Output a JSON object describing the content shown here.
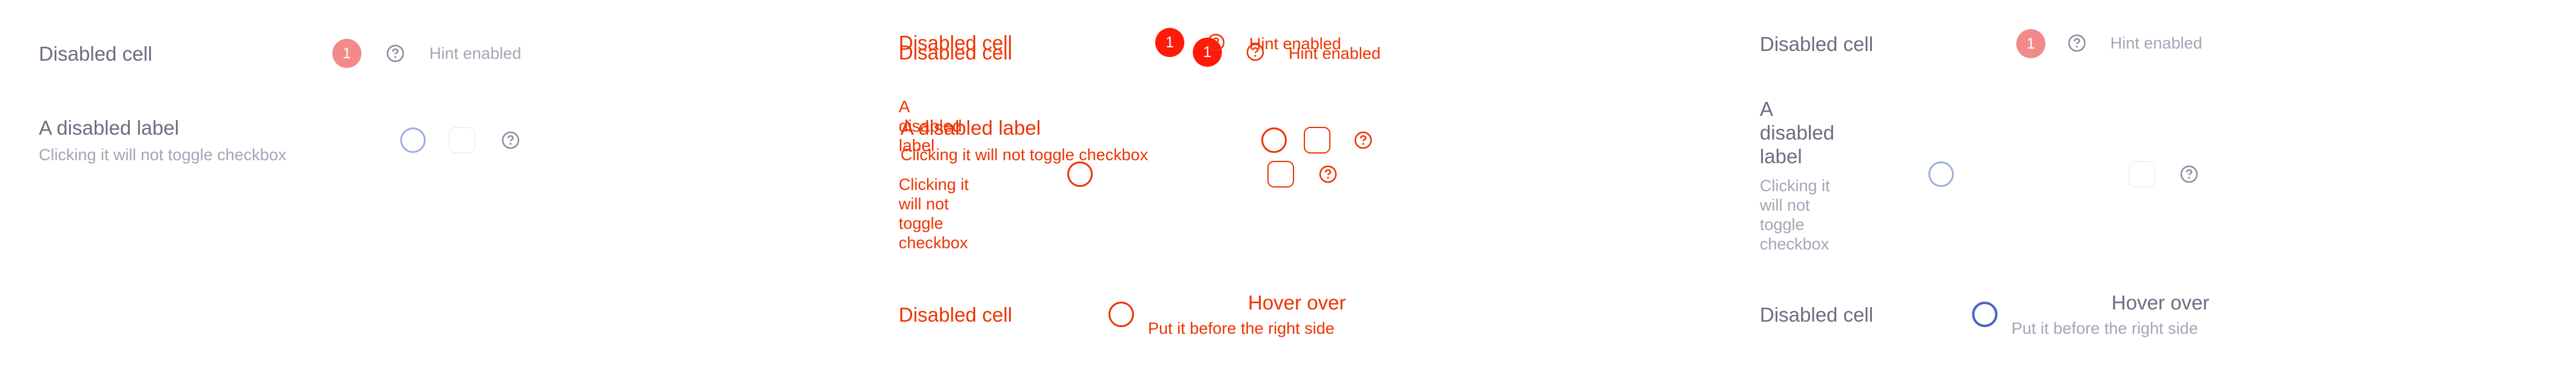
{
  "colors": {
    "label": "#6b6e80",
    "muted": "#a3a6b4",
    "badge_disabled": "#f28a8a",
    "badge_error": "#ff1a0a",
    "error_text": "#ee3300",
    "radio_disabled": "#9fb0dd",
    "radio_active": "#4a66c4"
  },
  "left": {
    "row1": {
      "label": "Disabled cell",
      "badge": "1",
      "icon": "question-circle-icon",
      "hint": "Hint enabled"
    },
    "row2": {
      "label": "A disabled label",
      "sublabel": "Clicking it will not toggle checkbox",
      "icon": "question-circle-icon"
    }
  },
  "middle": {
    "row1": {
      "label": "Disabled cell",
      "badge": "1",
      "icon": "question-circle-icon",
      "hint": "Hint enabled"
    },
    "row2": {
      "label_wrapped": "A disabled label",
      "label": "A disabled label",
      "sublabel": "Clicking it will not toggle checkbox",
      "icon": "question-circle-icon"
    },
    "row3": {
      "label": "Disabled cell",
      "right_title": "Hover over",
      "right_sub": "Put it before the right side"
    }
  },
  "right": {
    "row1": {
      "label": "Disabled cell",
      "badge": "1",
      "icon": "question-circle-icon",
      "hint": "Hint enabled"
    },
    "row2": {
      "label": "A disabled label",
      "sublabel": "Clicking it will not toggle checkbox",
      "icon": "question-circle-icon"
    },
    "row3": {
      "label": "Disabled cell",
      "right_title": "Hover over",
      "right_sub": "Put it before the right side"
    }
  }
}
